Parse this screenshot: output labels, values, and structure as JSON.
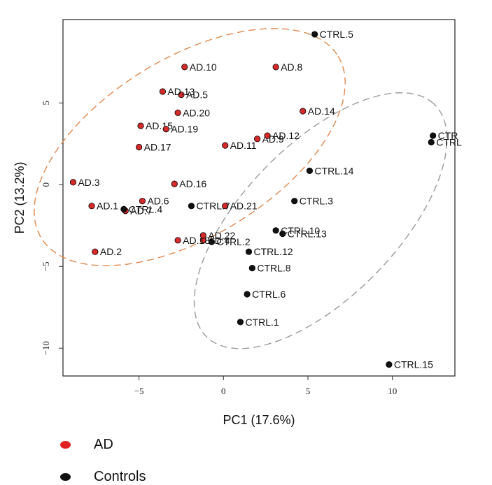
{
  "chart_data": {
    "type": "scatter",
    "title": "",
    "xlabel": "PC1 (17.6%)",
    "ylabel": "PC2 (13.2%)",
    "xlim": [
      -9.5,
      13.7
    ],
    "ylim": [
      -11.7,
      10.1
    ],
    "xticks": [
      -5,
      0,
      5,
      10
    ],
    "yticks": [
      -10,
      -5,
      0,
      5
    ],
    "grid": false,
    "legend_position": "bottom-left",
    "series": [
      {
        "name": "AD",
        "color": "#d42a2a",
        "points": [
          {
            "label": "AD.1",
            "x": -7.8,
            "y": -1.3
          },
          {
            "label": "AD.2",
            "x": -7.6,
            "y": -4.1
          },
          {
            "label": "AD.3",
            "x": -8.9,
            "y": 0.15
          },
          {
            "label": "AD.4",
            "x": -1.2,
            "y": -3.4
          },
          {
            "label": "AD.5",
            "x": -2.5,
            "y": 5.5
          },
          {
            "label": "AD.6",
            "x": -4.8,
            "y": -1.0
          },
          {
            "label": "AD.7",
            "x": -5.8,
            "y": -1.6
          },
          {
            "label": "AD.8",
            "x": 3.1,
            "y": 7.2
          },
          {
            "label": "AD.9",
            "x": 2.0,
            "y": 2.8
          },
          {
            "label": "AD.10",
            "x": -2.3,
            "y": 7.2
          },
          {
            "label": "AD.11",
            "x": 0.1,
            "y": 2.4
          },
          {
            "label": "AD.12",
            "x": 2.6,
            "y": 3.0
          },
          {
            "label": "AD.13",
            "x": -3.6,
            "y": 5.7
          },
          {
            "label": "AD.14",
            "x": 4.7,
            "y": 4.5
          },
          {
            "label": "AD.15",
            "x": -4.9,
            "y": 3.6
          },
          {
            "label": "AD.16",
            "x": -2.9,
            "y": 0.05
          },
          {
            "label": "AD.17",
            "x": -5.0,
            "y": 2.3
          },
          {
            "label": "AD.18",
            "x": -2.7,
            "y": -3.4
          },
          {
            "label": "AD.19",
            "x": -3.4,
            "y": 3.4
          },
          {
            "label": "AD.20",
            "x": -2.7,
            "y": 4.4
          },
          {
            "label": "AD.21",
            "x": 0.1,
            "y": -1.3
          },
          {
            "label": "AD.22",
            "x": -1.2,
            "y": -3.1
          }
        ]
      },
      {
        "name": "Controls",
        "color": "#111111",
        "points": [
          {
            "label": "CTRL.1",
            "x": 1.0,
            "y": -8.4
          },
          {
            "label": "CTRL.2",
            "x": -0.7,
            "y": -3.5
          },
          {
            "label": "CTRL.3",
            "x": 4.2,
            "y": -1.0
          },
          {
            "label": "CTRL.4",
            "x": -5.9,
            "y": -1.5
          },
          {
            "label": "CTRL.5",
            "x": 5.4,
            "y": 9.2
          },
          {
            "label": "CTRL.6",
            "x": 1.4,
            "y": -6.7
          },
          {
            "label": "CTRL.7",
            "x": -1.9,
            "y": -1.3
          },
          {
            "label": "CTRL.8",
            "x": 1.7,
            "y": -5.1
          },
          {
            "label": "CTRL.10",
            "x": 3.1,
            "y": -2.8
          },
          {
            "label": "CTRL.12",
            "x": 1.5,
            "y": -4.1
          },
          {
            "label": "CTRL.13",
            "x": 3.5,
            "y": -3.0
          },
          {
            "label": "CTRL.14",
            "x": 5.1,
            "y": 0.85
          },
          {
            "label": "CTRL.15",
            "x": 9.8,
            "y": -11.0
          },
          {
            "label": "CTR",
            "x": 12.4,
            "y": 3.0
          },
          {
            "label": "CTRL",
            "x": 12.3,
            "y": 2.6
          }
        ]
      }
    ],
    "ellipses": [
      {
        "group": "AD",
        "color": "#e0884c",
        "cx": -2.0,
        "cy": 2.3,
        "rx": 10.4,
        "ry": 5.4,
        "angle_deg": 33
      },
      {
        "group": "Controls",
        "color": "#9a9a9a",
        "cx": 5.75,
        "cy": -2.2,
        "rx": 9.8,
        "ry": 4.6,
        "angle_deg": 47
      }
    ]
  },
  "legend": {
    "items": [
      {
        "label": "AD",
        "color": "#e02020"
      },
      {
        "label": "Controls",
        "color": "#111111"
      }
    ]
  }
}
